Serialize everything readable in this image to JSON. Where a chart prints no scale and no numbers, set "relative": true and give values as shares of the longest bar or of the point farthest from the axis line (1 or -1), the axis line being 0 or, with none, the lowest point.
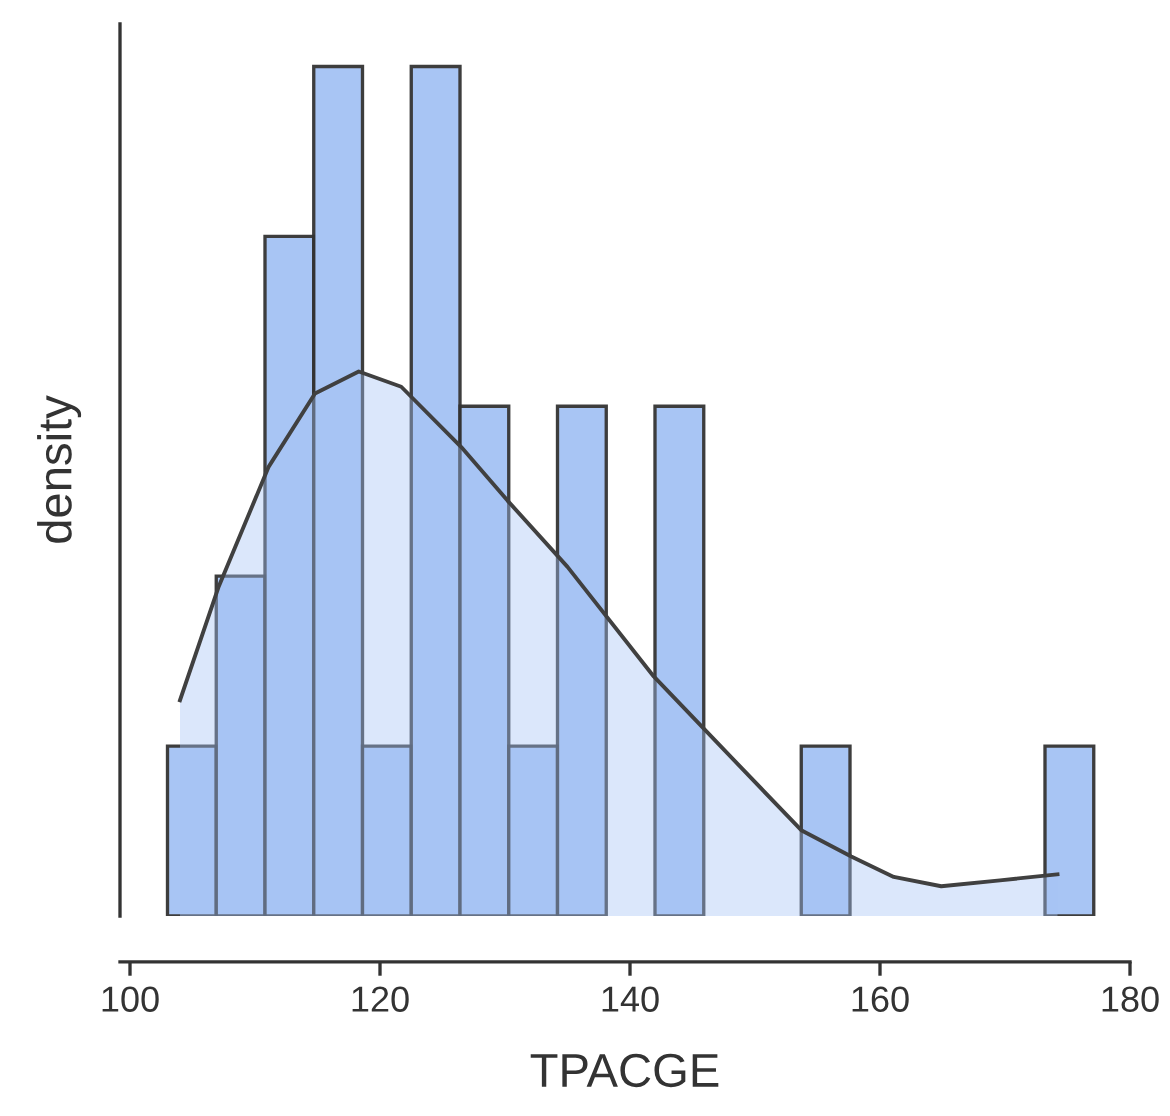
{
  "chart_data": {
    "type": "histogram",
    "xlabel": "TPACGE",
    "ylabel": "density",
    "relative": true,
    "xlim": [
      99.2,
      180
    ],
    "xticks": [
      100,
      120,
      140,
      160,
      180
    ],
    "grid": false,
    "bins": [
      103.0,
      106.9,
      110.8,
      114.7,
      118.6,
      122.5,
      126.4,
      130.3,
      134.2,
      138.1,
      142.0,
      145.9,
      149.8,
      153.7,
      157.6,
      161.5,
      165.4,
      169.3,
      173.2,
      177.1
    ],
    "values": [
      0.2,
      0.4,
      0.8,
      1,
      0.2,
      1,
      0.6,
      0.2,
      0.6,
      0,
      0.6,
      0,
      0,
      0.2,
      0,
      0,
      0,
      0,
      0.2
    ],
    "color": "#a4c2f4",
    "series": [
      {
        "type": "area",
        "color": "#404040",
        "x": [
          104.0,
          107.1,
          111.1,
          114.8,
          118.3,
          121.7,
          126.5,
          130.2,
          135.0,
          141.9,
          146.0,
          153.7,
          157.7,
          161.1,
          164.9,
          169.6,
          174.2
        ],
        "values": [
          0.254,
          0.388,
          0.529,
          0.615,
          0.641,
          0.623,
          0.552,
          0.489,
          0.411,
          0.282,
          0.219,
          0.101,
          0.07,
          0.046,
          0.035,
          0.042,
          0.049
        ]
      }
    ]
  }
}
